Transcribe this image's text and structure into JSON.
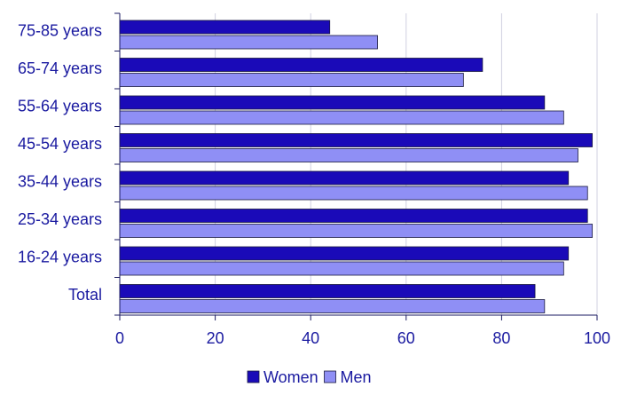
{
  "chart_data": {
    "type": "bar",
    "orientation": "horizontal",
    "title": "",
    "xlabel": "",
    "ylabel": "",
    "categories": [
      "75-85 years",
      "65-74 years",
      "55-64 years",
      "45-54 years",
      "35-44 years",
      "25-34 years",
      "16-24 years",
      "Total"
    ],
    "series": [
      {
        "name": "Women",
        "color": "#1a0ab8",
        "values": [
          44,
          76,
          89,
          99,
          94,
          98,
          94,
          87
        ]
      },
      {
        "name": "Men",
        "color": "#8f8ff5",
        "values": [
          54,
          72,
          93,
          96,
          98,
          99,
          93,
          89
        ]
      }
    ],
    "xlim": [
      0,
      100
    ],
    "xticks": [
      0,
      20,
      40,
      60,
      80,
      100
    ],
    "grid": true,
    "legend_position": "bottom-center"
  },
  "colors": {
    "text": "#1a1aa0",
    "axis": "#1a1a60",
    "grid": "#d0d0e0",
    "bar_border": "#1a1a40"
  }
}
